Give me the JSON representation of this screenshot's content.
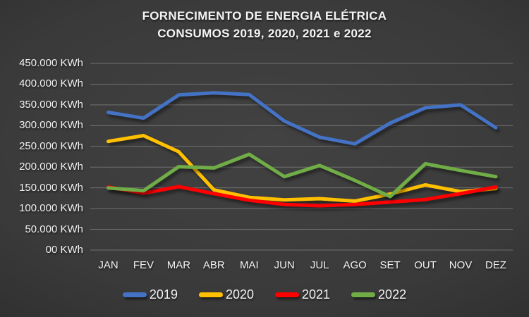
{
  "title": {
    "line1": "FORNECIMENTO DE ENERGIA ELÉTRICA",
    "line2": "CONSUMOS 2019, 2020, 2021 e 2022"
  },
  "chart_data": {
    "type": "line",
    "categories": [
      "JAN",
      "FEV",
      "MAR",
      "ABR",
      "MAI",
      "JUN",
      "JUL",
      "AGO",
      "SET",
      "OUT",
      "NOV",
      "DEZ"
    ],
    "series": [
      {
        "name": "2019",
        "color": "#4472C4",
        "values": [
          332000,
          318000,
          374000,
          379000,
          375000,
          311000,
          272000,
          256000,
          306000,
          343000,
          350000,
          295000
        ]
      },
      {
        "name": "2020",
        "color": "#FFC000",
        "values": [
          262000,
          276000,
          237000,
          145000,
          127000,
          121000,
          124000,
          118000,
          135000,
          157000,
          141000,
          148000
        ]
      },
      {
        "name": "2021",
        "color": "#FF0000",
        "values": [
          152000,
          137000,
          153000,
          136000,
          120000,
          110000,
          107000,
          110000,
          116000,
          122000,
          136000,
          152000
        ]
      },
      {
        "name": "2022",
        "color": "#70AD47",
        "values": [
          150000,
          143000,
          201000,
          198000,
          231000,
          177000,
          204000,
          168000,
          129000,
          208000,
          192000,
          177000
        ]
      }
    ],
    "y_ticks": [
      "450.000 KWh",
      "400.000 KWh",
      "350.000 KWh",
      "300.000 KWh",
      "250.000 KWh",
      "200.000 KWh",
      "150.000 KWh",
      "100.000 KWh",
      "50.000 KWh",
      "00 KWh"
    ],
    "ylim": [
      0,
      450000
    ],
    "y_step": 50000,
    "unit": "KWh",
    "grid": true,
    "legend_position": "bottom",
    "legend": [
      "2019",
      "2020",
      "2021",
      "2022"
    ]
  },
  "colors": {
    "background_center": "#424242",
    "background_edge": "#1e1e1e",
    "gridline": "#c8c8c8",
    "text": "#f2f2f2",
    "series_2019": "#4472C4",
    "series_2020": "#FFC000",
    "series_2021": "#FF0000",
    "series_2022": "#70AD47"
  }
}
